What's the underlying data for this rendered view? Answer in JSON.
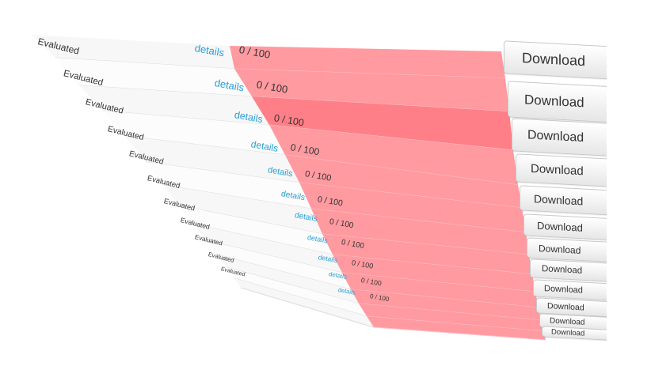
{
  "colors": {
    "score_cell": "#ff9aa0",
    "score_cell_highlight": "#ff7f88",
    "link": "#2a9fd6",
    "row_divider": "#dcdcdc",
    "button_border": "#c8c8c8"
  },
  "rows": [
    {
      "status": "Evaluated",
      "details": "details",
      "score": "0 / 100",
      "action": "Download"
    },
    {
      "status": "Evaluated",
      "details": "details",
      "score": "0 / 100",
      "action": "Download"
    },
    {
      "status": "Evaluated",
      "details": "details",
      "score": "0 / 100",
      "action": "Download"
    },
    {
      "status": "Evaluated",
      "details": "details",
      "score": "0 / 100",
      "action": "Download"
    },
    {
      "status": "Evaluated",
      "details": "details",
      "score": "0 / 100",
      "action": "Download"
    },
    {
      "status": "Evaluated",
      "details": "details",
      "score": "0 / 100",
      "action": "Download"
    },
    {
      "status": "Evaluated",
      "details": "details",
      "score": "0 / 100",
      "action": "Download"
    },
    {
      "status": "Evaluated",
      "details": "details",
      "score": "0 / 100",
      "action": "Download"
    },
    {
      "status": "Evaluated",
      "details": "details",
      "score": "0 / 100",
      "action": "Download"
    },
    {
      "status": "Evaluated",
      "details": "details",
      "score": "0 / 100",
      "action": "Download"
    },
    {
      "status": "Evaluated",
      "details": "details",
      "score": "0 / 100",
      "action": "Download"
    },
    {
      "status": "Evaluated",
      "details": "details",
      "score": "0 / 100",
      "action": "Download"
    },
    {
      "status": "Evaluated",
      "details": "details",
      "score": "0 / 100",
      "action": "Download"
    }
  ]
}
